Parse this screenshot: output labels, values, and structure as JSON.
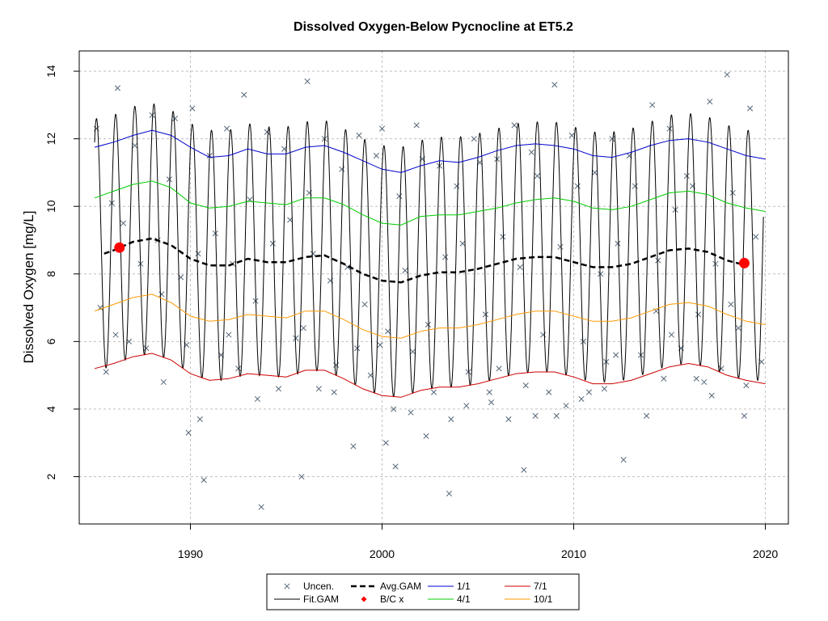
{
  "chart_data": {
    "type": "line",
    "title": "Dissolved Oxygen-Below Pycnocline at ET5.2",
    "xlabel": "",
    "ylabel": "Dissolved Oxygen [mg/L]",
    "xlim": [
      1984.2,
      2021.2
    ],
    "ylim": [
      0.6,
      14.6
    ],
    "x_ticks": [
      1990,
      2000,
      2010,
      2020
    ],
    "y_ticks": [
      2,
      4,
      6,
      8,
      10,
      12,
      14
    ],
    "grid": true,
    "legend_position": "bottom",
    "fit_gam": {
      "start_year": 1985.0,
      "end_year": 2019.9,
      "seasonal_min": 5.0,
      "seasonal_max": 12.4,
      "peak_month_fraction": 0.1
    },
    "series": [
      {
        "name": "1/1",
        "color": "#0000CC",
        "x": [
          1985,
          1986,
          1987,
          1988,
          1989,
          1990,
          1991,
          1992,
          1993,
          1994,
          1995,
          1996,
          1997,
          1998,
          1999,
          2000,
          2001,
          2002,
          2003,
          2004,
          2005,
          2006,
          2007,
          2008,
          2009,
          2010,
          2011,
          2012,
          2013,
          2014,
          2015,
          2016,
          2017,
          2018,
          2019,
          2020
        ],
        "y": [
          11.75,
          11.9,
          12.1,
          12.25,
          12.1,
          11.75,
          11.45,
          11.5,
          11.7,
          11.55,
          11.55,
          11.75,
          11.8,
          11.6,
          11.35,
          11.1,
          11.0,
          11.2,
          11.35,
          11.3,
          11.45,
          11.65,
          11.8,
          11.85,
          11.8,
          11.7,
          11.5,
          11.45,
          11.6,
          11.8,
          11.95,
          12.0,
          11.9,
          11.7,
          11.5,
          11.4
        ]
      },
      {
        "name": "4/1",
        "color": "#00CC00",
        "x": [
          1985,
          1986,
          1987,
          1988,
          1989,
          1990,
          1991,
          1992,
          1993,
          1994,
          1995,
          1996,
          1997,
          1998,
          1999,
          2000,
          2001,
          2002,
          2003,
          2004,
          2005,
          2006,
          2007,
          2008,
          2009,
          2010,
          2011,
          2012,
          2013,
          2014,
          2015,
          2016,
          2017,
          2018,
          2019,
          2020
        ],
        "y": [
          10.25,
          10.45,
          10.65,
          10.75,
          10.55,
          10.1,
          9.95,
          10.0,
          10.15,
          10.1,
          10.05,
          10.25,
          10.25,
          10.05,
          9.75,
          9.5,
          9.45,
          9.7,
          9.75,
          9.75,
          9.85,
          9.95,
          10.1,
          10.2,
          10.25,
          10.15,
          9.95,
          9.9,
          10.0,
          10.2,
          10.4,
          10.45,
          10.35,
          10.1,
          9.95,
          9.85
        ]
      },
      {
        "name": "7/1",
        "color": "#CC0000",
        "x": [
          1985,
          1986,
          1987,
          1988,
          1989,
          1990,
          1991,
          1992,
          1993,
          1994,
          1995,
          1996,
          1997,
          1998,
          1999,
          2000,
          2001,
          2002,
          2003,
          2004,
          2005,
          2006,
          2007,
          2008,
          2009,
          2010,
          2011,
          2012,
          2013,
          2014,
          2015,
          2016,
          2017,
          2018,
          2019,
          2020
        ],
        "y": [
          5.2,
          5.35,
          5.55,
          5.65,
          5.45,
          5.05,
          4.85,
          4.9,
          5.05,
          5.0,
          4.95,
          5.15,
          5.15,
          4.9,
          4.6,
          4.4,
          4.35,
          4.55,
          4.65,
          4.65,
          4.75,
          4.9,
          5.05,
          5.1,
          5.1,
          4.95,
          4.75,
          4.75,
          4.85,
          5.05,
          5.25,
          5.35,
          5.25,
          5.0,
          4.85,
          4.75
        ]
      },
      {
        "name": "10/1",
        "color": "#FF9900",
        "x": [
          1985,
          1986,
          1987,
          1988,
          1989,
          1990,
          1991,
          1992,
          1993,
          1994,
          1995,
          1996,
          1997,
          1998,
          1999,
          2000,
          2001,
          2002,
          2003,
          2004,
          2005,
          2006,
          2007,
          2008,
          2009,
          2010,
          2011,
          2012,
          2013,
          2014,
          2015,
          2016,
          2017,
          2018,
          2019,
          2020
        ],
        "y": [
          6.9,
          7.1,
          7.3,
          7.4,
          7.15,
          6.75,
          6.6,
          6.65,
          6.8,
          6.75,
          6.7,
          6.9,
          6.9,
          6.65,
          6.35,
          6.15,
          6.1,
          6.3,
          6.4,
          6.4,
          6.5,
          6.65,
          6.8,
          6.9,
          6.9,
          6.75,
          6.6,
          6.6,
          6.7,
          6.9,
          7.1,
          7.15,
          7.05,
          6.8,
          6.6,
          6.5
        ]
      },
      {
        "name": "Avg.GAM",
        "color": "#000000",
        "dashed": true,
        "x": [
          1985.5,
          1986,
          1987,
          1988,
          1989,
          1990,
          1991,
          1992,
          1993,
          1994,
          1995,
          1996,
          1997,
          1998,
          1999,
          2000,
          2001,
          2002,
          2003,
          2004,
          2005,
          2006,
          2007,
          2008,
          2009,
          2010,
          2011,
          2012,
          2013,
          2014,
          2015,
          2016,
          2017,
          2018,
          2019
        ],
        "y": [
          8.6,
          8.7,
          8.95,
          9.05,
          8.85,
          8.45,
          8.25,
          8.25,
          8.45,
          8.35,
          8.35,
          8.5,
          8.55,
          8.3,
          8.0,
          7.8,
          7.75,
          7.95,
          8.05,
          8.05,
          8.15,
          8.3,
          8.45,
          8.5,
          8.5,
          8.35,
          8.2,
          8.2,
          8.3,
          8.5,
          8.7,
          8.75,
          8.65,
          8.4,
          8.25
        ]
      }
    ],
    "bc_points": [
      {
        "x": 1986.3,
        "y": 8.78
      },
      {
        "x": 2018.9,
        "y": 8.32
      }
    ],
    "uncensored_points": {
      "color": "#556677",
      "x": [
        1985.1,
        1985.3,
        1985.6,
        1985.9,
        1986.2,
        1986.5,
        1986.8,
        1987.1,
        1987.4,
        1987.7,
        1988.0,
        1988.3,
        1988.6,
        1988.9,
        1989.2,
        1989.5,
        1989.8,
        1990.1,
        1990.4,
        1990.7,
        1991.0,
        1991.3,
        1991.6,
        1991.9,
        1992.2,
        1992.5,
        1992.8,
        1993.1,
        1993.4,
        1993.7,
        1994.0,
        1994.3,
        1994.6,
        1994.9,
        1995.2,
        1995.5,
        1995.8,
        1996.1,
        1996.4,
        1996.7,
        1997.0,
        1997.3,
        1997.6,
        1997.9,
        1998.2,
        1998.5,
        1998.8,
        1999.1,
        1999.4,
        1999.7,
        2000.0,
        2000.3,
        2000.6,
        2000.9,
        2001.2,
        2001.5,
        2001.8,
        2002.1,
        2002.4,
        2002.7,
        2003.0,
        2003.3,
        2003.6,
        2003.9,
        2004.2,
        2004.5,
        2004.8,
        2005.1,
        2005.4,
        2005.7,
        2006.0,
        2006.3,
        2006.6,
        2006.9,
        2007.2,
        2007.5,
        2007.8,
        2008.1,
        2008.4,
        2008.7,
        2009.0,
        2009.3,
        2009.6,
        2009.9,
        2010.2,
        2010.5,
        2010.8,
        2011.1,
        2011.4,
        2011.7,
        2012.0,
        2012.3,
        2012.6,
        2012.9,
        2013.2,
        2013.5,
        2013.8,
        2014.1,
        2014.4,
        2014.7,
        2015.0,
        2015.3,
        2015.6,
        2015.9,
        2016.2,
        2016.5,
        2016.8,
        2017.1,
        2017.4,
        2017.7,
        2018.0,
        2018.3,
        2018.6,
        2018.9,
        2019.2,
        2019.5,
        2019.8,
        1986.1,
        1988.5,
        1990.5,
        1993.5,
        1995.9,
        1998.7,
        2000.2,
        2000.7,
        2001.6,
        2003.5,
        2005.6,
        2007.4,
        2009.1,
        2011.6,
        2014.3,
        2016.4,
        2018.2,
        1989.9,
        1992.0,
        1996.2,
        1997.5,
        1999.9,
        2002.3,
        2004.4,
        2006.1,
        2008.0,
        2010.4,
        2012.2,
        2015.1,
        2017.2,
        2019.0
      ],
      "y": [
        12.3,
        7.0,
        5.1,
        10.1,
        13.5,
        9.5,
        6.0,
        11.8,
        8.3,
        5.8,
        12.7,
        9.0,
        4.8,
        10.8,
        12.6,
        7.9,
        5.9,
        12.9,
        8.6,
        1.9,
        11.5,
        9.2,
        5.6,
        12.3,
        8.3,
        5.2,
        13.3,
        10.2,
        7.2,
        1.1,
        12.2,
        8.9,
        4.6,
        11.7,
        9.6,
        6.1,
        2.0,
        13.7,
        8.6,
        4.6,
        12.0,
        7.8,
        5.3,
        11.1,
        8.2,
        2.9,
        12.1,
        7.1,
        5.0,
        11.5,
        12.3,
        6.3,
        4.0,
        10.3,
        8.1,
        3.9,
        12.4,
        11.4,
        6.5,
        4.5,
        11.2,
        8.5,
        3.7,
        10.6,
        8.9,
        5.1,
        12.0,
        11.3,
        6.8,
        4.2,
        11.4,
        9.1,
        3.7,
        12.4,
        8.2,
        4.7,
        11.6,
        10.9,
        6.2,
        4.5,
        13.6,
        8.8,
        4.1,
        12.1,
        10.6,
        6.0,
        4.5,
        11.0,
        8.0,
        5.4,
        12.0,
        8.9,
        2.5,
        11.5,
        10.6,
        5.6,
        3.8,
        13.0,
        8.4,
        4.9,
        12.3,
        9.9,
        5.8,
        10.9,
        10.6,
        6.8,
        4.8,
        13.1,
        8.3,
        5.2,
        13.9,
        10.4,
        6.4,
        3.8,
        12.9,
        9.1,
        5.4,
        6.2,
        7.4,
        3.7,
        4.3,
        6.4,
        5.8,
        3.0,
        2.3,
        5.7,
        1.5,
        4.5,
        2.2,
        3.8,
        4.6,
        6.9,
        4.9,
        7.1,
        3.3,
        6.2,
        10.4,
        4.5,
        5.9,
        3.2,
        4.1,
        5.2,
        3.8,
        4.3,
        5.6,
        6.2,
        4.4,
        4.7
      ]
    },
    "legend": {
      "items": [
        {
          "label": "Uncen.",
          "kind": "cross",
          "color": "#556677"
        },
        {
          "label": "Fit.GAM",
          "kind": "line",
          "color": "#000000"
        },
        {
          "label": "Avg.GAM",
          "kind": "dash",
          "color": "#000000"
        },
        {
          "label": "B/C x",
          "kind": "diamond",
          "color": "#FF0000"
        },
        {
          "label": "1/1",
          "kind": "line",
          "color": "#0000CC"
        },
        {
          "label": "4/1",
          "kind": "line",
          "color": "#00CC00"
        },
        {
          "label": "7/1",
          "kind": "line",
          "color": "#CC0000"
        },
        {
          "label": "10/1",
          "kind": "line",
          "color": "#FF9900"
        }
      ]
    }
  }
}
